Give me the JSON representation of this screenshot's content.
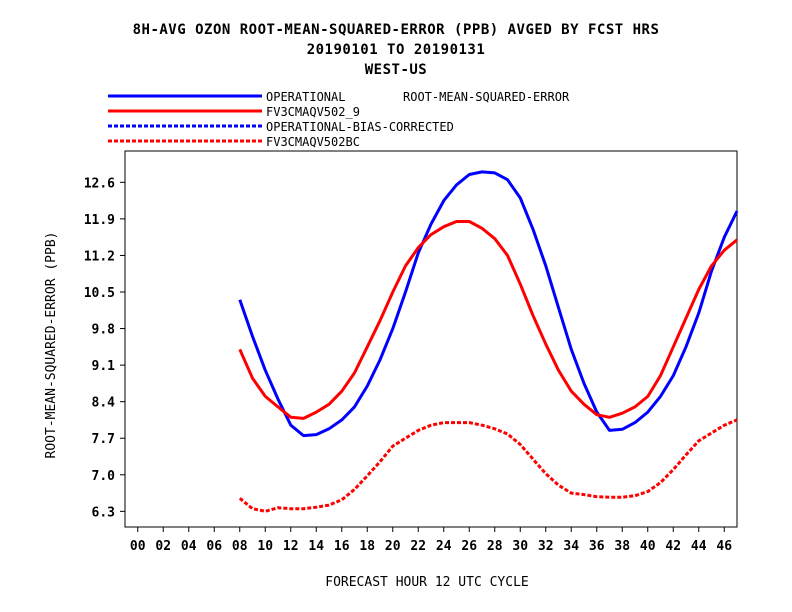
{
  "titles": {
    "line1": "8H-AVG OZON ROOT-MEAN-SQUARED-ERROR (PPB)  AVGED BY FCST HRS",
    "line2": "20190101 TO 20190131",
    "line3": "WEST-US"
  },
  "legend": {
    "stat_label": "ROOT-MEAN-SQUARED-ERROR"
  },
  "chart_data": {
    "type": "line",
    "xlabel": "FORECAST HOUR  12 UTC CYCLE",
    "ylabel": "ROOT-MEAN-SQUARED-ERROR (PPB)",
    "xlim": [
      -1,
      47
    ],
    "ylim": [
      6.0,
      13.2
    ],
    "xticks": [
      "00",
      "02",
      "04",
      "06",
      "08",
      "10",
      "12",
      "14",
      "16",
      "18",
      "20",
      "22",
      "24",
      "26",
      "28",
      "30",
      "32",
      "34",
      "36",
      "38",
      "40",
      "42",
      "44",
      "46"
    ],
    "yticks": [
      "6.3",
      "7.0",
      "7.7",
      "8.4",
      "9.1",
      "9.8",
      "10.5",
      "11.2",
      "11.9",
      "12.6"
    ],
    "grid": false,
    "legend_position": "top-left",
    "series": [
      {
        "name": "OPERATIONAL",
        "color": "#0000ff",
        "dash": "solid",
        "x": [
          8,
          9,
          10,
          11,
          12,
          13,
          14,
          15,
          16,
          17,
          18,
          19,
          20,
          21,
          22,
          23,
          24,
          25,
          26,
          27,
          28,
          29,
          30,
          31,
          32,
          33,
          34,
          35,
          36,
          37,
          38,
          39,
          40,
          41,
          42,
          43,
          44,
          45,
          46,
          47
        ],
        "y": [
          10.35,
          9.65,
          9.0,
          8.45,
          7.95,
          7.75,
          7.77,
          7.88,
          8.05,
          8.3,
          8.7,
          9.2,
          9.8,
          10.5,
          11.25,
          11.8,
          12.25,
          12.55,
          12.75,
          12.8,
          12.78,
          12.65,
          12.3,
          11.7,
          11.0,
          10.2,
          9.4,
          8.75,
          8.2,
          7.85,
          7.87,
          8.0,
          8.2,
          8.5,
          8.9,
          9.45,
          10.1,
          10.9,
          11.55,
          12.05
        ]
      },
      {
        "name": "FV3CMAQV502_9",
        "color": "#ff0000",
        "dash": "solid",
        "x": [
          8,
          9,
          10,
          11,
          12,
          13,
          14,
          15,
          16,
          17,
          18,
          19,
          20,
          21,
          22,
          23,
          24,
          25,
          26,
          27,
          28,
          29,
          30,
          31,
          32,
          33,
          34,
          35,
          36,
          37,
          38,
          39,
          40,
          41,
          42,
          43,
          44,
          45,
          46,
          47
        ],
        "y": [
          9.4,
          8.85,
          8.5,
          8.3,
          8.1,
          8.08,
          8.2,
          8.35,
          8.6,
          8.95,
          9.45,
          9.95,
          10.5,
          11.0,
          11.35,
          11.6,
          11.75,
          11.85,
          11.85,
          11.72,
          11.52,
          11.2,
          10.65,
          10.05,
          9.5,
          9.0,
          8.6,
          8.35,
          8.15,
          8.1,
          8.18,
          8.3,
          8.5,
          8.9,
          9.45,
          10.0,
          10.55,
          11.0,
          11.3,
          11.5
        ]
      },
      {
        "name": "OPERATIONAL-BIAS-CORRECTED",
        "color": "#0000ff",
        "dash": "dashed",
        "x": [],
        "y": []
      },
      {
        "name": "FV3CMAQV502BC",
        "color": "#ff0000",
        "dash": "dashed",
        "x": [
          8,
          9,
          10,
          11,
          12,
          13,
          14,
          15,
          16,
          17,
          18,
          19,
          20,
          21,
          22,
          23,
          24,
          25,
          26,
          27,
          28,
          29,
          30,
          31,
          32,
          33,
          34,
          35,
          36,
          37,
          38,
          39,
          40,
          41,
          42,
          43,
          44,
          45,
          46,
          47
        ],
        "y": [
          6.55,
          6.35,
          6.3,
          6.37,
          6.35,
          6.35,
          6.38,
          6.42,
          6.52,
          6.72,
          6.98,
          7.25,
          7.55,
          7.7,
          7.85,
          7.95,
          8.0,
          8.0,
          8.0,
          7.95,
          7.88,
          7.78,
          7.58,
          7.3,
          7.02,
          6.8,
          6.65,
          6.62,
          6.58,
          6.57,
          6.57,
          6.6,
          6.68,
          6.85,
          7.1,
          7.38,
          7.65,
          7.8,
          7.95,
          8.05
        ]
      }
    ]
  }
}
